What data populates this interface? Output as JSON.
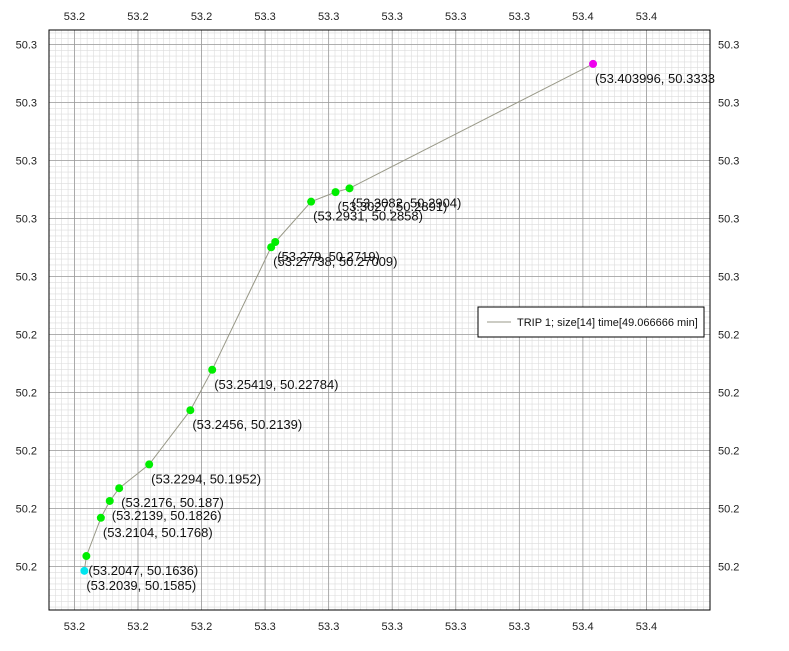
{
  "chart_data": {
    "type": "scatter",
    "title": "",
    "xlabel": "",
    "ylabel": "",
    "xlim": [
      53.19,
      53.45
    ],
    "ylim": [
      50.145,
      50.345
    ],
    "grid": true,
    "legend_position": "right",
    "x_ticks": [
      {
        "value": 53.2,
        "label": "53.2"
      },
      {
        "value": 53.225,
        "label": "53.2"
      },
      {
        "value": 53.25,
        "label": "53.2"
      },
      {
        "value": 53.275,
        "label": "53.3"
      },
      {
        "value": 53.3,
        "label": "53.3"
      },
      {
        "value": 53.325,
        "label": "53.3"
      },
      {
        "value": 53.35,
        "label": "53.3"
      },
      {
        "value": 53.375,
        "label": "53.3"
      },
      {
        "value": 53.4,
        "label": "53.4"
      },
      {
        "value": 53.425,
        "label": "53.4"
      }
    ],
    "y_ticks": [
      {
        "value": 50.16,
        "label": "50.2"
      },
      {
        "value": 50.18,
        "label": "50.2"
      },
      {
        "value": 50.2,
        "label": "50.2"
      },
      {
        "value": 50.22,
        "label": "50.2"
      },
      {
        "value": 50.24,
        "label": "50.2"
      },
      {
        "value": 50.26,
        "label": "50.3"
      },
      {
        "value": 50.28,
        "label": "50.3"
      },
      {
        "value": 50.3,
        "label": "50.3"
      },
      {
        "value": 50.32,
        "label": "50.3"
      },
      {
        "value": 50.34,
        "label": "50.3"
      }
    ],
    "series": [
      {
        "name": "TRIP 1; size[14] time[49.066666 min]",
        "line_color": "#999988",
        "points": [
          {
            "x": 53.2039,
            "y": 50.1585,
            "label": "(53.2039, 50.1585)",
            "color": "#00e5ee"
          },
          {
            "x": 53.2047,
            "y": 50.1636,
            "label": "(53.2047, 50.1636)",
            "color": "#00ee00"
          },
          {
            "x": 53.2104,
            "y": 50.1768,
            "label": "(53.2104, 50.1768)",
            "color": "#00ee00"
          },
          {
            "x": 53.2139,
            "y": 50.1826,
            "label": "(53.2139, 50.1826)",
            "color": "#00ee00"
          },
          {
            "x": 53.2176,
            "y": 50.187,
            "label": "(53.2176, 50.187)",
            "color": "#00ee00"
          },
          {
            "x": 53.2294,
            "y": 50.1952,
            "label": "(53.2294, 50.1952)",
            "color": "#00ee00"
          },
          {
            "x": 53.2456,
            "y": 50.2139,
            "label": "(53.2456, 50.2139)",
            "color": "#00ee00"
          },
          {
            "x": 53.25419,
            "y": 50.22784,
            "label": "(53.25419, 50.22784)",
            "color": "#00ee00"
          },
          {
            "x": 53.27738,
            "y": 50.27009,
            "label": "(53.27738, 50.27009)",
            "color": "#00ee00"
          },
          {
            "x": 53.279,
            "y": 50.2719,
            "label": "(53.279, 50.2719)",
            "color": "#00ee00"
          },
          {
            "x": 53.2931,
            "y": 50.2858,
            "label": "(53.2931, 50.2858)",
            "color": "#00ee00"
          },
          {
            "x": 53.3027,
            "y": 50.2891,
            "label": "(53.3027, 50.2891)",
            "color": "#00ee00"
          },
          {
            "x": 53.3082,
            "y": 50.2904,
            "label": "(53.3082, 50.2904)",
            "color": "#00ee00"
          },
          {
            "x": 53.403996,
            "y": 50.3333,
            "label": "(53.403996, 50.3333",
            "color": "#ee00ee"
          }
        ]
      }
    ]
  }
}
